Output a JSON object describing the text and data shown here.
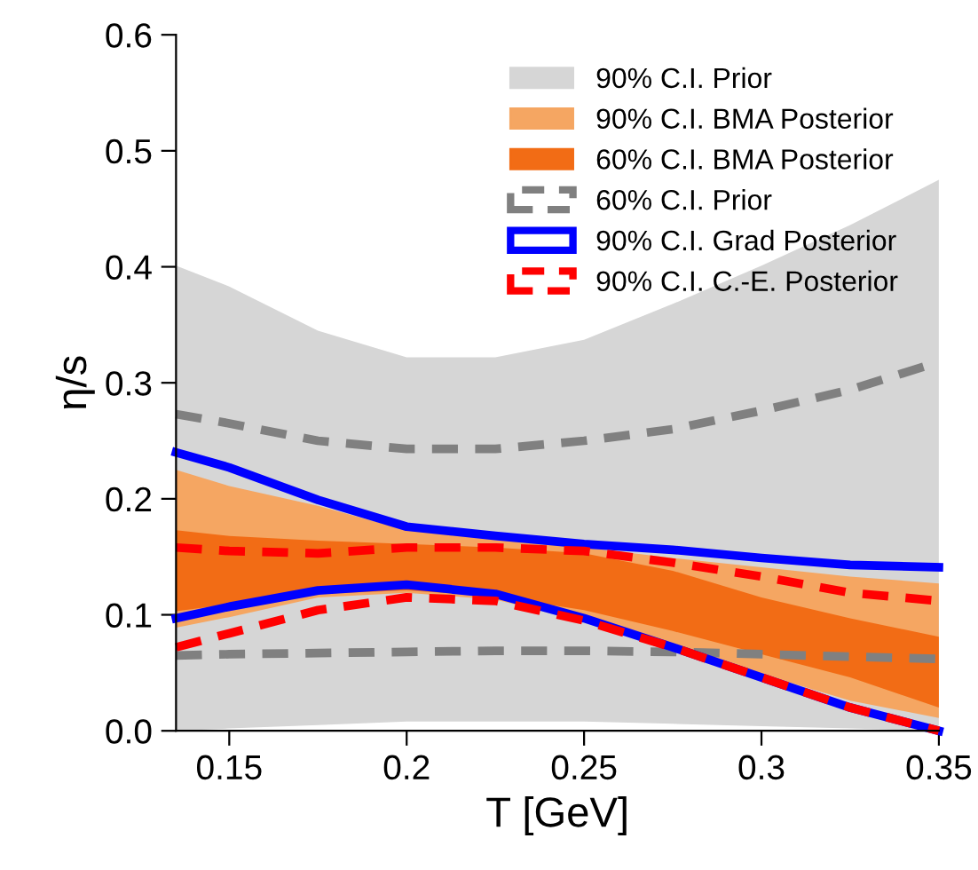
{
  "chart_data": {
    "type": "line",
    "xlabel": "T [GeV]",
    "ylabel": "η/s",
    "x": [
      0.135,
      0.15,
      0.175,
      0.2,
      0.225,
      0.25,
      0.275,
      0.3,
      0.325,
      0.35
    ],
    "xlim": [
      0.135,
      0.35
    ],
    "ylim": [
      0,
      0.6
    ],
    "xticks": [
      0.15,
      0.2,
      0.25,
      0.3,
      0.35
    ],
    "yticks": [
      {
        "value": 0,
        "label": "0.0"
      },
      0.1,
      0.2,
      0.3,
      0.4,
      0.5,
      0.6
    ],
    "grid": false,
    "legend": "top right",
    "series": [
      {
        "name": "90% C.I. Prior",
        "color": "#d6d6d6",
        "values": [
          null,
          null,
          null,
          null,
          null,
          null,
          null,
          null,
          null,
          null
        ],
        "upper": [
          0.401,
          0.383,
          0.345,
          0.322,
          0.322,
          0.337,
          0.368,
          0.401,
          0.436,
          0.475
        ],
        "lower": [
          0.0,
          0.002,
          0.005,
          0.008,
          0.008,
          0.008,
          0.006,
          0.004,
          0.002,
          0.0
        ]
      },
      {
        "name": "90% C.I. BMA Posterior",
        "color": "#f5a662",
        "values": [
          null,
          null,
          null,
          null,
          null,
          null,
          null,
          null,
          null,
          null
        ],
        "upper": [
          0.225,
          0.211,
          0.194,
          0.173,
          0.165,
          0.158,
          0.149,
          0.141,
          0.133,
          0.127
        ],
        "lower": [
          0.089,
          0.098,
          0.115,
          0.119,
          0.113,
          0.095,
          0.073,
          0.049,
          0.026,
          0.011
        ]
      },
      {
        "name": "60% C.I. BMA Posterior",
        "color": "#f26c15",
        "values": [
          null,
          null,
          null,
          null,
          null,
          null,
          null,
          null,
          null,
          null
        ],
        "upper": [
          0.173,
          0.168,
          0.164,
          0.161,
          0.158,
          0.153,
          0.138,
          0.115,
          0.097,
          0.081
        ],
        "lower": [
          0.103,
          0.109,
          0.118,
          0.121,
          0.116,
          0.104,
          0.086,
          0.066,
          0.046,
          0.02
        ]
      },
      {
        "name": "60% C.I. Prior",
        "line_style": "dashed",
        "color": "#808080",
        "values": [
          0.273,
          0.265,
          0.25,
          0.243,
          0.243,
          0.25,
          0.26,
          0.276,
          0.294,
          0.318
        ]
      },
      {
        "line_style": "dashed",
        "color": "#808080",
        "values": [
          0.065,
          0.066,
          0.067,
          0.068,
          0.069,
          0.069,
          0.068,
          0.066,
          0.064,
          0.062
        ]
      },
      {
        "name": "90% C.I. Grad Posterior",
        "line_style": "solid",
        "color": "#0000ff",
        "values": [
          0.24,
          0.227,
          0.199,
          0.176,
          0.168,
          0.161,
          0.156,
          0.149,
          0.143,
          0.141
        ]
      },
      {
        "line_style": "solid",
        "color": "#0000ff",
        "values": [
          0.097,
          0.107,
          0.121,
          0.126,
          0.118,
          0.097,
          0.072,
          0.046,
          0.02,
          0.0
        ]
      },
      {
        "name": "90% C.I. C.-E. Posterior",
        "line_style": "dashed",
        "color": "#ff0000",
        "values": [
          0.158,
          0.155,
          0.153,
          0.158,
          0.158,
          0.155,
          0.145,
          0.133,
          0.119,
          0.112
        ]
      },
      {
        "line_style": "dashed",
        "color": "#ff0000",
        "values": [
          0.072,
          0.084,
          0.104,
          0.115,
          0.112,
          0.095,
          0.072,
          0.046,
          0.02,
          0.0
        ]
      }
    ]
  }
}
